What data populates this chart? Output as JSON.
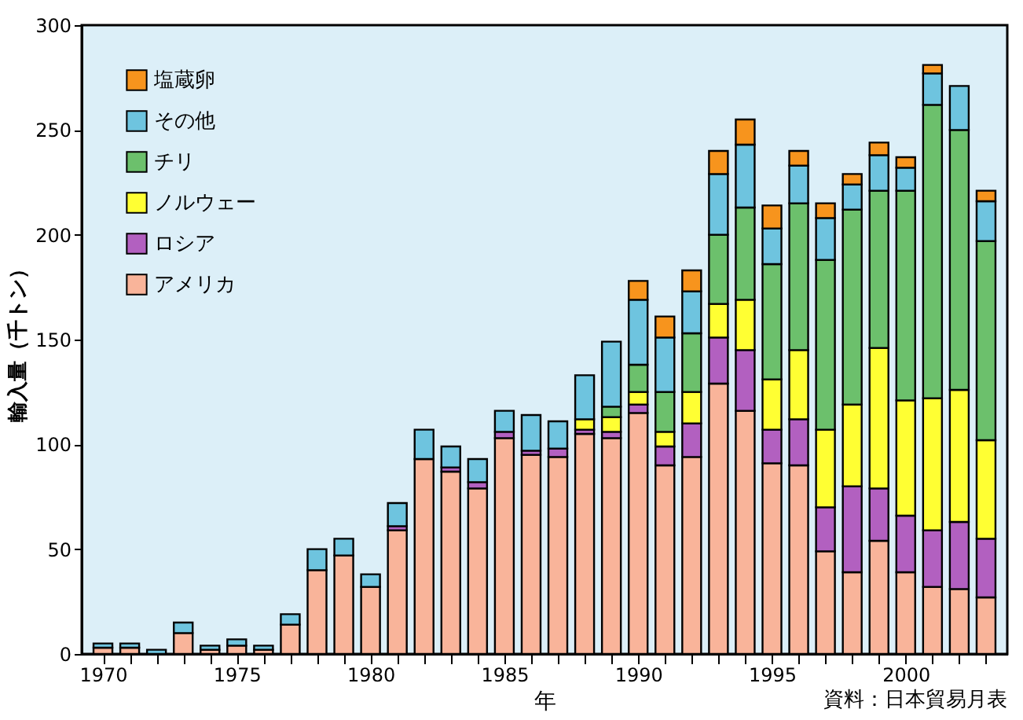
{
  "chart_data": {
    "type": "bar",
    "stacked": true,
    "xlabel": "年",
    "ylabel": "輸入量（千トン）",
    "x": [
      1970,
      1971,
      1972,
      1973,
      1974,
      1975,
      1976,
      1977,
      1978,
      1979,
      1980,
      1981,
      1982,
      1983,
      1984,
      1985,
      1986,
      1987,
      1988,
      1989,
      1990,
      1991,
      1992,
      1993,
      1994,
      1995,
      1996,
      1997,
      1998,
      1999,
      2000,
      2001,
      2002,
      2003
    ],
    "series": [
      {
        "name": "アメリカ",
        "color": "#f9b49a",
        "values": [
          3,
          3,
          null,
          10,
          2,
          4,
          2,
          14,
          40,
          47,
          32,
          59,
          93,
          87,
          79,
          103,
          95,
          94,
          105,
          103,
          115,
          90,
          94,
          129,
          116,
          91,
          90,
          49,
          39,
          54,
          39,
          32,
          31,
          27
        ]
      },
      {
        "name": "ロシア",
        "color": "#b260c0",
        "values": [
          null,
          null,
          null,
          null,
          null,
          null,
          null,
          null,
          null,
          null,
          null,
          2,
          null,
          2,
          3,
          3,
          2,
          4,
          2,
          3,
          4,
          9,
          16,
          22,
          29,
          16,
          22,
          21,
          41,
          25,
          27,
          27,
          32,
          28
        ]
      },
      {
        "name": "ノルウェー",
        "color": "#ffff33",
        "values": [
          null,
          null,
          null,
          null,
          null,
          null,
          null,
          null,
          null,
          null,
          null,
          null,
          null,
          null,
          null,
          null,
          null,
          null,
          5,
          7,
          6,
          7,
          15,
          16,
          24,
          24,
          33,
          37,
          39,
          67,
          55,
          63,
          63,
          47
        ]
      },
      {
        "name": "チリ",
        "color": "#6cc06c",
        "values": [
          null,
          null,
          null,
          null,
          null,
          null,
          null,
          null,
          null,
          null,
          null,
          null,
          null,
          null,
          null,
          null,
          null,
          null,
          null,
          5,
          13,
          19,
          28,
          33,
          44,
          55,
          70,
          81,
          93,
          75,
          100,
          140,
          124,
          95
        ]
      },
      {
        "name": "その他",
        "color": "#6ec4df",
        "values": [
          2,
          2,
          2,
          5,
          2,
          3,
          2,
          5,
          10,
          8,
          6,
          11,
          14,
          10,
          11,
          10,
          17,
          13,
          21,
          31,
          31,
          26,
          20,
          29,
          30,
          17,
          18,
          20,
          12,
          17,
          11,
          15,
          21,
          19
        ]
      },
      {
        "name": "塩蔵卵",
        "color": "#f7941d",
        "values": [
          null,
          null,
          null,
          null,
          null,
          null,
          null,
          null,
          null,
          null,
          null,
          null,
          null,
          null,
          null,
          null,
          null,
          null,
          null,
          null,
          9,
          10,
          10,
          11,
          12,
          11,
          7,
          7,
          5,
          6,
          5,
          4,
          null,
          5
        ]
      }
    ],
    "xlim": [
      1969.5,
      2003.5
    ],
    "xticks": [
      1970,
      {
        "value": 1971,
        "label": null
      },
      {
        "value": 1972,
        "label": null
      },
      {
        "value": 1973,
        "label": null
      },
      {
        "value": 1974,
        "label": null
      },
      1975,
      {
        "value": 1976,
        "label": null
      },
      {
        "value": 1977,
        "label": null
      },
      {
        "value": 1978,
        "label": null
      },
      {
        "value": 1979,
        "label": null
      },
      1980,
      {
        "value": 1981,
        "label": null
      },
      {
        "value": 1982,
        "label": null
      },
      {
        "value": 1983,
        "label": null
      },
      {
        "value": 1984,
        "label": null
      },
      1985,
      {
        "value": 1986,
        "label": null
      },
      {
        "value": 1987,
        "label": null
      },
      {
        "value": 1988,
        "label": null
      },
      {
        "value": 1989,
        "label": null
      },
      1990,
      {
        "value": 1991,
        "label": null
      },
      {
        "value": 1992,
        "label": null
      },
      {
        "value": 1993,
        "label": null
      },
      {
        "value": 1994,
        "label": null
      },
      1995,
      {
        "value": 1996,
        "label": null
      },
      {
        "value": 1997,
        "label": null
      },
      {
        "value": 1998,
        "label": null
      },
      {
        "value": 1999,
        "label": null
      },
      2000,
      {
        "value": 2001,
        "label": null
      },
      {
        "value": 2002,
        "label": null
      },
      {
        "value": 2003,
        "label": null
      }
    ],
    "ylim": [
      0,
      300
    ],
    "yticks": [
      0,
      50,
      100,
      150,
      200,
      250,
      300
    ],
    "grid": false,
    "legend": "top left",
    "annotations": [
      "資料：日本貿易月表"
    ]
  }
}
